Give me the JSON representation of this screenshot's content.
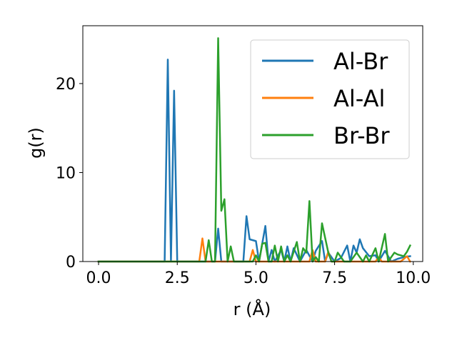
{
  "chart_data": {
    "type": "line",
    "xlabel": "r (Å)",
    "ylabel": "g(r)",
    "xlim": [
      -0.5,
      10.3
    ],
    "ylim": [
      0,
      26.5
    ],
    "xticks": [
      "0.0",
      "2.5",
      "5.0",
      "7.5",
      "10.0"
    ],
    "yticks": [
      "0",
      "10",
      "20"
    ],
    "grid": false,
    "legend_position": "top-right",
    "series": [
      {
        "name": "Al-Br",
        "color": "#1f77b4",
        "x": [
          0.0,
          2.1,
          2.2,
          2.3,
          2.4,
          2.5,
          3.7,
          3.8,
          3.9,
          4.6,
          4.7,
          4.8,
          5.0,
          5.1,
          5.3,
          5.4,
          5.5,
          5.6,
          5.8,
          5.9,
          6.0,
          6.1,
          6.2,
          6.4,
          6.6,
          6.8,
          6.9,
          7.1,
          7.2,
          7.3,
          7.5,
          7.7,
          7.9,
          8.0,
          8.1,
          8.2,
          8.3,
          8.4,
          8.6,
          8.8,
          8.9,
          9.1,
          9.3,
          9.5,
          9.7,
          9.9
        ],
        "y": [
          0,
          0,
          22.7,
          0,
          19.2,
          0,
          0,
          3.7,
          0,
          0,
          5.1,
          2.5,
          2.3,
          0,
          4.0,
          0,
          1.3,
          0,
          1.3,
          0,
          1.7,
          0,
          1.5,
          0,
          1.3,
          0,
          1.2,
          2.3,
          0,
          1.0,
          0,
          0.4,
          1.8,
          0,
          1.8,
          1.0,
          2.5,
          1.5,
          0.6,
          0.7,
          0,
          1.2,
          0,
          0.3,
          0.5,
          0.6
        ]
      },
      {
        "name": "Al-Al",
        "color": "#ff7f0e",
        "x": [
          0.0,
          3.2,
          3.3,
          3.4,
          3.5,
          4.8,
          4.9,
          5.0,
          6.7,
          6.8,
          6.9,
          7.2,
          7.3,
          7.4,
          8.8,
          8.9,
          9.0,
          9.6,
          9.7,
          9.8,
          9.9
        ],
        "y": [
          0,
          0,
          2.6,
          0,
          0,
          0,
          1.3,
          0,
          0,
          1.3,
          0,
          0,
          1.1,
          0,
          0,
          0.5,
          0,
          0,
          0.3,
          0.6,
          0
        ]
      },
      {
        "name": "Br-Br",
        "color": "#2ca02c",
        "x": [
          0.0,
          3.4,
          3.5,
          3.6,
          3.7,
          3.8,
          3.9,
          4.0,
          4.1,
          4.2,
          4.3,
          4.4,
          4.9,
          5.0,
          5.1,
          5.2,
          5.3,
          5.4,
          5.5,
          5.6,
          5.7,
          5.8,
          5.9,
          6.0,
          6.1,
          6.3,
          6.4,
          6.5,
          6.6,
          6.7,
          6.8,
          6.9,
          7.0,
          7.1,
          7.3,
          7.4,
          7.5,
          7.6,
          7.8,
          8.0,
          8.2,
          8.4,
          8.5,
          8.6,
          8.8,
          8.9,
          9.1,
          9.2,
          9.4,
          9.5,
          9.7,
          9.8,
          9.9
        ],
        "y": [
          0,
          0,
          2.4,
          0,
          0,
          25.1,
          5.7,
          7.0,
          0,
          1.7,
          0,
          0,
          0,
          0.7,
          0,
          2.0,
          2.1,
          0,
          0,
          1.8,
          0,
          1.7,
          0,
          0.7,
          0,
          2.2,
          0,
          1.5,
          1.0,
          6.8,
          0,
          0.5,
          0,
          4.3,
          1.0,
          0,
          0,
          1.0,
          0,
          0,
          1.0,
          0,
          0.7,
          0,
          1.5,
          0,
          3.1,
          0,
          1.0,
          0.8,
          0.6,
          1.1,
          1.8
        ]
      }
    ]
  }
}
